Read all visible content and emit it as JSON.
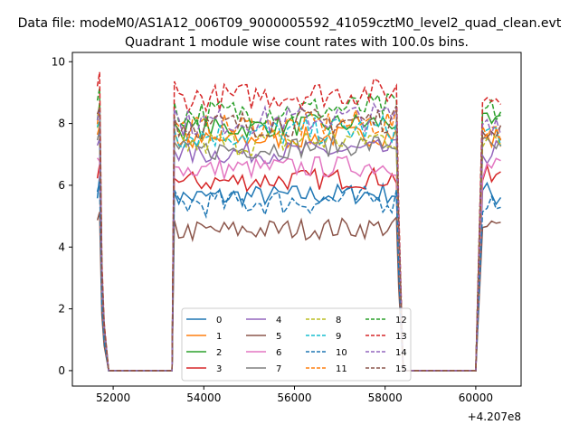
{
  "chart_data": {
    "type": "line",
    "suptitle": "Data file: modeM0/AS1A12_006T09_9000005592_41059cztM0_level2_quad_clean.evt",
    "title": "Quadrant 1 module wise count rates with 100.0s bins.",
    "xlabel": "",
    "ylabel": "",
    "x_offset_label": "+4.207e8",
    "xlim": [
      51100,
      61000
    ],
    "ylim": [
      -0.5,
      10.3
    ],
    "x_ticks": [
      52000,
      54000,
      56000,
      58000,
      60000
    ],
    "x_tick_labels": [
      "52000",
      "54000",
      "56000",
      "58000",
      "60000"
    ],
    "y_ticks": [
      0,
      2,
      4,
      6,
      8,
      10
    ],
    "y_tick_labels": [
      "0",
      "2",
      "4",
      "6",
      "8",
      "10"
    ],
    "grid": false,
    "legend_position": "lower-center",
    "legend_columns": 4,
    "segments": [
      {
        "start": 51650,
        "end": 51750,
        "drop_at": 51850
      },
      {
        "start": 53350,
        "end": 58250,
        "rise_from": 53250,
        "drop_at": 58350
      },
      {
        "start": 60150,
        "end": 60550,
        "rise_from": 60050
      }
    ],
    "zero_ranges": [
      [
        51900,
        53300
      ],
      [
        58400,
        60000
      ]
    ],
    "series": [
      {
        "name": "0",
        "level": 5.6,
        "color": "#1f77b4",
        "dash": "solid"
      },
      {
        "name": "1",
        "level": 7.4,
        "color": "#ff7f0e",
        "dash": "solid"
      },
      {
        "name": "2",
        "level": 7.8,
        "color": "#2ca02c",
        "dash": "solid"
      },
      {
        "name": "3",
        "level": 6.1,
        "color": "#d62728",
        "dash": "solid"
      },
      {
        "name": "4",
        "level": 7.0,
        "color": "#9467bd",
        "dash": "solid"
      },
      {
        "name": "5",
        "level": 4.5,
        "color": "#8c564b",
        "dash": "solid"
      },
      {
        "name": "6",
        "level": 6.5,
        "color": "#e377c2",
        "dash": "solid"
      },
      {
        "name": "7",
        "level": 7.1,
        "color": "#7f7f7f",
        "dash": "solid"
      },
      {
        "name": "8",
        "level": 7.3,
        "color": "#bcbd22",
        "dash": "dashed"
      },
      {
        "name": "9",
        "level": 7.6,
        "color": "#17becf",
        "dash": "dashed"
      },
      {
        "name": "10",
        "level": 5.4,
        "color": "#1f77b4",
        "dash": "dashed"
      },
      {
        "name": "11",
        "level": 7.8,
        "color": "#ff7f0e",
        "dash": "dashed"
      },
      {
        "name": "12",
        "level": 8.3,
        "color": "#2ca02c",
        "dash": "dashed"
      },
      {
        "name": "13",
        "level": 8.8,
        "color": "#d62728",
        "dash": "dashed"
      },
      {
        "name": "14",
        "level": 8.0,
        "color": "#9467bd",
        "dash": "dashed"
      },
      {
        "name": "15",
        "level": 7.9,
        "color": "#8c564b",
        "dash": "dashed"
      }
    ]
  }
}
